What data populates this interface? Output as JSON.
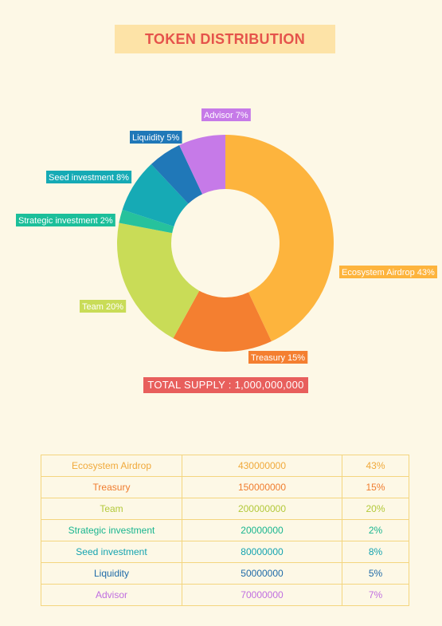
{
  "title": "TOKEN DISTRIBUTION",
  "total_supply": "TOTAL SUPPLY : 1,000,000,000",
  "chart_data": {
    "type": "pie",
    "title": "TOKEN DISTRIBUTION",
    "slices": [
      {
        "name": "Ecosystem Airdrop",
        "value": 43,
        "label": "Ecosystem Airdrop 43%",
        "color": "#fdb43d",
        "label_color": "#fdb43d"
      },
      {
        "name": "Treasury",
        "value": 15,
        "label": "Treasury 15%",
        "color": "#f47f30",
        "label_color": "#f47f30"
      },
      {
        "name": "Team",
        "value": 20,
        "label": "Team 20%",
        "color": "#c9dc57",
        "label_color": "#c9dc57"
      },
      {
        "name": "Strategic investment",
        "value": 2,
        "label": "Strategic investment 2%",
        "color": "#26c29c",
        "label_color": "#1cbf9a"
      },
      {
        "name": "Seed investment",
        "value": 8,
        "label": "Seed investment 8%",
        "color": "#16aab5",
        "label_color": "#16aab5"
      },
      {
        "name": "Liquidity",
        "value": 5,
        "label": "Liquidity 5%",
        "color": "#2078b8",
        "label_color": "#2078b8"
      },
      {
        "name": "Advisor",
        "value": 7,
        "label": "Advisor 7%",
        "color": "#c67ae8",
        "label_color": "#c67ae8"
      }
    ]
  },
  "table": {
    "rows": [
      {
        "name": "Ecosystem Airdrop",
        "amount": "430000000",
        "percent": "43%",
        "color": "#f0a93b"
      },
      {
        "name": "Treasury",
        "amount": "150000000",
        "percent": "15%",
        "color": "#f07c2e"
      },
      {
        "name": "Team",
        "amount": "200000000",
        "percent": "20%",
        "color": "#b3c93a"
      },
      {
        "name": "Strategic investment",
        "amount": "20000000",
        "percent": "2%",
        "color": "#19b58f"
      },
      {
        "name": "Seed investment",
        "amount": "80000000",
        "percent": "8%",
        "color": "#14a3b0"
      },
      {
        "name": "Liquidity",
        "amount": "50000000",
        "percent": "5%",
        "color": "#1e6aa8"
      },
      {
        "name": "Advisor",
        "amount": "70000000",
        "percent": "7%",
        "color": "#c06ee0"
      }
    ]
  }
}
